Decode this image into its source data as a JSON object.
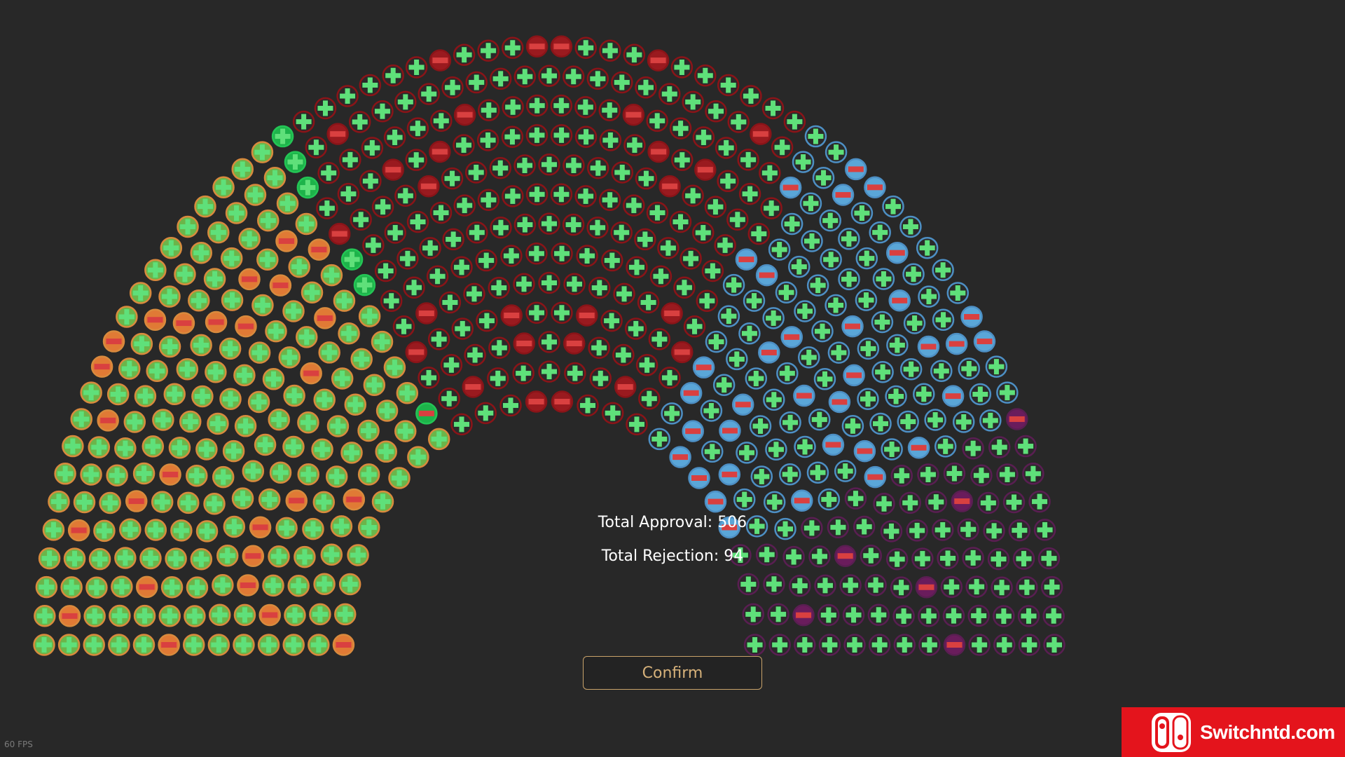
{
  "totals": {
    "approval_label": "Total Approval: 506",
    "rejection_label": "Total Rejection: 94"
  },
  "confirm_label": "Confirm",
  "fps_label": "60 FPS",
  "watermark_text": "Switchntd.com",
  "colors": {
    "background": "#282828",
    "plus_mark": "#5fe07a",
    "minus_mark": "#d94040",
    "confirm_border": "#c9a36a",
    "confirm_text": "#d6b17a",
    "watermark_bg": "#e4141c"
  },
  "parties": [
    {
      "id": "orange",
      "seats": 194,
      "rejections": 26,
      "fill": "#6bb54a",
      "ring": "#d98a3d",
      "reject_fill": "#e07a35"
    },
    {
      "id": "green",
      "seats": 6,
      "rejections": 1,
      "fill": "#1db34a",
      "ring": "#24c555",
      "reject_fill": "#1db34a"
    },
    {
      "id": "red",
      "seats": 200,
      "rejections": 27,
      "fill": "#2a2a2a",
      "ring": "#8a1418",
      "reject_fill": "#9a1a1f"
    },
    {
      "id": "blue",
      "seats": 120,
      "rejections": 34,
      "fill": "#2a2a2a",
      "ring": "#4d8fc4",
      "reject_fill": "#5aa6d8"
    },
    {
      "id": "purple",
      "seats": 80,
      "rejections": 6,
      "fill": "#2a2a2a",
      "ring": "#5a1e52",
      "reject_fill": "#6a1c5c"
    }
  ],
  "icons": {
    "approve": "plus-icon",
    "reject": "minus-icon",
    "watermark": "switch-logo-icon"
  }
}
